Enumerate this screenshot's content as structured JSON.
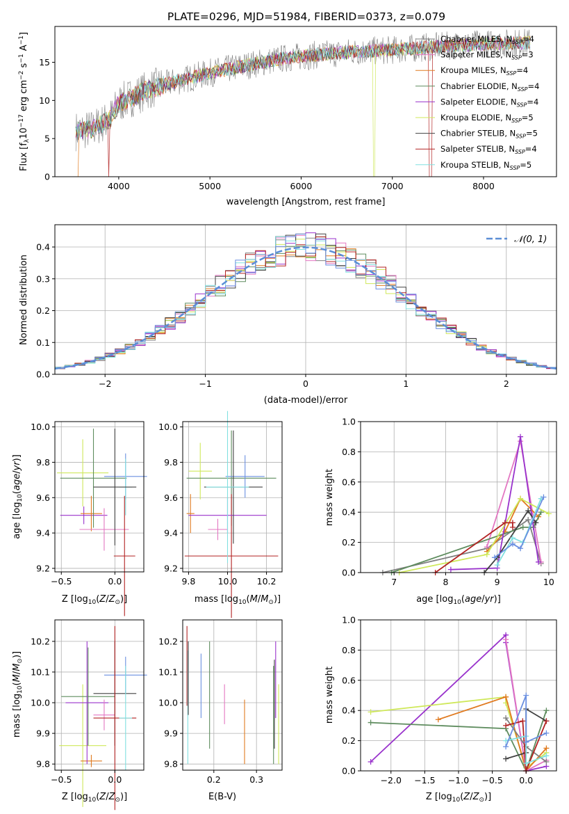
{
  "title": "PLATE=0296, MJD=51984, FIBERID=0373, z=0.079",
  "colors": {
    "Chabrier MILES": "#808080",
    "Salpeter MILES": "#e377c2",
    "Kroupa MILES": "#e07a1f",
    "Chabrier ELODIE": "#5e8c5e",
    "Salpeter ELODIE": "#9932cc",
    "Kroupa ELODIE": "#cfe85a",
    "Chabrier STELIB": "#404040",
    "Salpeter STELIB": "#b22222",
    "Kroupa STELIB": "#80e0e0",
    "STELIB blue": "#6a8fe0",
    "gaussian": "#5b8ed6"
  },
  "chart_data": [
    {
      "id": "spectrum",
      "type": "line",
      "title": "PLATE=0296, MJD=51984, FIBERID=0373, z=0.079",
      "xlabel": "wavelength [Angstrom, rest frame]",
      "ylabel": "Flux [f_λ10^-17 erg cm^-2 s^-1 A^-1]",
      "xlim": [
        3300,
        8800
      ],
      "ylim": [
        0,
        19.7
      ],
      "xticks": [
        "4000",
        "5000",
        "6000",
        "7000",
        "8000"
      ],
      "yticks": [
        "0",
        "5",
        "10",
        "15"
      ],
      "legend_position": "top-right",
      "legend": [
        {
          "pre": "Chabrier MILES, N",
          "n": "4",
          "key": "Chabrier MILES"
        },
        {
          "pre": "Salpeter MILES, N",
          "n": "3",
          "key": "Salpeter MILES"
        },
        {
          "pre": "Kroupa MILES, N",
          "n": "4",
          "key": "Kroupa MILES"
        },
        {
          "pre": "Chabrier ELODIE, N",
          "n": "4",
          "key": "Chabrier ELODIE"
        },
        {
          "pre": "Salpeter ELODIE, N",
          "n": "4",
          "key": "Salpeter ELODIE"
        },
        {
          "pre": "Kroupa ELODIE, N",
          "n": "5",
          "key": "Kroupa ELODIE"
        },
        {
          "pre": "Chabrier STELIB, N",
          "n": "5",
          "key": "Chabrier STELIB"
        },
        {
          "pre": "Salpeter STELIB, N",
          "n": "4",
          "key": "Salpeter STELIB"
        },
        {
          "pre": "Kroupa STELIB, N",
          "n": "5",
          "key": "Kroupa STELIB"
        }
      ],
      "continuum": [
        [
          3530,
          6.0
        ],
        [
          3700,
          6.2
        ],
        [
          3900,
          7.5
        ],
        [
          4000,
          9.6
        ],
        [
          4300,
          11.3
        ],
        [
          4600,
          12.4
        ],
        [
          5000,
          13.6
        ],
        [
          5400,
          14.6
        ],
        [
          5800,
          15.5
        ],
        [
          6200,
          16.0
        ],
        [
          6600,
          16.4
        ],
        [
          7000,
          16.6
        ],
        [
          7400,
          17.0
        ],
        [
          7800,
          17.3
        ],
        [
          8200,
          17.5
        ],
        [
          8500,
          17.6
        ]
      ],
      "dropouts": [
        {
          "key": "Kroupa ELODIE",
          "x": 6800,
          "range": [
            6790,
            6810
          ]
        },
        {
          "key": "Salpeter STELIB",
          "x": 7420,
          "range": [
            7400,
            7440
          ]
        },
        {
          "key": "Kroupa MILES",
          "x": 3540,
          "range": [
            3530,
            3560
          ]
        },
        {
          "key": "Salpeter STELIB",
          "x": 3890,
          "range": [
            3880,
            3900
          ]
        }
      ]
    },
    {
      "id": "residuals",
      "type": "line",
      "xlabel": "(data-model)/error",
      "ylabel": "Normed distribution",
      "xlim": [
        -2.5,
        2.5
      ],
      "ylim": [
        0,
        0.47
      ],
      "xticks": [
        "−2",
        "−1",
        "0",
        "1",
        "2"
      ],
      "yticks": [
        "0.0",
        "0.1",
        "0.2",
        "0.3",
        "0.4"
      ],
      "legend": "𝒩(0, 1)",
      "legend_position": "top-right",
      "bin_width": 0.1
    },
    {
      "id": "age-vs-Z",
      "type": "scatter",
      "xlabel": "Z [log10(Z/Z⊙)]",
      "ylabel": "age  [log10(age/yr)]",
      "xlim": [
        -0.56,
        0.27
      ],
      "ylim": [
        9.18,
        10.03
      ],
      "xticks": [
        "−0.5",
        "0.0"
      ],
      "yticks": [
        "9.2",
        "9.4",
        "9.6",
        "9.8",
        "10.0"
      ],
      "points": [
        {
          "key": "Kroupa ELODIE",
          "x": -0.3,
          "xe": 0.24,
          "y": 9.74,
          "ye": 0.19
        },
        {
          "key": "Salpeter ELODIE",
          "x": -0.29,
          "xe": 0.22,
          "y": 9.5,
          "ye": 0.05
        },
        {
          "key": "Kroupa MILES",
          "x": -0.22,
          "xe": 0.1,
          "y": 9.51,
          "ye": 0.1
        },
        {
          "key": "Chabrier ELODIE",
          "x": -0.2,
          "xe": 0.31,
          "y": 9.71,
          "ye": 0.28
        },
        {
          "key": "Salpeter MILES",
          "x": -0.1,
          "xe": 0.23,
          "y": 9.42,
          "ye": 0.12
        },
        {
          "key": "STELIB blue",
          "x": 0.1,
          "xe": 0.2,
          "y": 9.72,
          "ye": 0.13
        },
        {
          "key": "Kroupa STELIB",
          "x": 0.1,
          "xe": 0.06,
          "y": 9.66,
          "ye": 0.16
        },
        {
          "key": "Chabrier STELIB",
          "x": 0.0,
          "xe": 0.2,
          "y": 9.66,
          "ye": 0.33
        },
        {
          "key": "Salpeter STELIB",
          "x": 0.09,
          "xe": 0.1,
          "y": 9.27,
          "ye": 0.34
        }
      ]
    },
    {
      "id": "age-vs-mass",
      "type": "scatter",
      "xlabel": "mass [log10(M/M⊙)]",
      "xlim": [
        9.77,
        10.28
      ],
      "ylim": [
        9.18,
        10.03
      ],
      "xticks": [
        "9.8",
        "10.0",
        "10.2"
      ],
      "yticks": [
        "9.2",
        "9.4",
        "9.6",
        "9.8",
        "10.0"
      ],
      "points": [
        {
          "key": "Kroupa ELODIE",
          "x": 9.86,
          "xe": 0.06,
          "y": 9.75,
          "ye": 0.16
        },
        {
          "key": "Kroupa MILES",
          "x": 9.81,
          "xe": 0.02,
          "y": 9.51,
          "ye": 0.11
        },
        {
          "key": "Chabrier ELODIE",
          "x": 10.02,
          "xe": 0.23,
          "y": 9.71,
          "ye": 0.27
        },
        {
          "key": "Salpeter STELIB",
          "x": 10.02,
          "xe": 0.24,
          "y": 9.27,
          "ye": 0.35
        },
        {
          "key": "Salpeter ELODIE",
          "x": 10.0,
          "xe": 0.2,
          "y": 9.5,
          "ye": 0.1
        },
        {
          "key": "STELIB blue",
          "x": 10.09,
          "xe": 0.1,
          "y": 9.72,
          "ye": 0.12
        },
        {
          "key": "Chabrier STELIB",
          "x": 10.03,
          "xe": 0.15,
          "y": 9.66,
          "ye": 0.32
        },
        {
          "key": "Salpeter MILES",
          "x": 9.95,
          "xe": 0.05,
          "y": 9.42,
          "ye": 0.06
        },
        {
          "key": "Kroupa STELIB",
          "x": 10.0,
          "xe": 0.11,
          "y": 9.66,
          "ye": 0.43
        }
      ]
    },
    {
      "id": "weight-vs-age",
      "type": "line",
      "xlabel": "age  [log10(age/yr)]",
      "ylabel": "mass weight",
      "xlim": [
        6.35,
        10.15
      ],
      "ylim": [
        0,
        1.0
      ],
      "xticks": [
        "7",
        "8",
        "9",
        "10"
      ],
      "yticks": [
        "0.0",
        "0.2",
        "0.4",
        "0.6",
        "0.8",
        "1.0"
      ],
      "series": [
        {
          "key": "Chabrier MILES",
          "points": [
            [
              6.78,
              0.0
            ],
            [
              8.8,
              0.16
            ],
            [
              9.6,
              0.35
            ],
            [
              9.85,
              0.06
            ]
          ]
        },
        {
          "key": "Salpeter MILES",
          "points": [
            [
              8.8,
              0.17
            ],
            [
              9.45,
              0.87
            ],
            [
              9.85,
              0.07
            ]
          ]
        },
        {
          "key": "Kroupa MILES",
          "points": [
            [
              8.8,
              0.14
            ],
            [
              9.15,
              0.27
            ],
            [
              9.45,
              0.49
            ],
            [
              9.8,
              0.37
            ]
          ]
        },
        {
          "key": "Chabrier ELODIE",
          "points": [
            [
              6.95,
              0.0
            ],
            [
              9.5,
              0.3
            ],
            [
              9.7,
              0.3
            ],
            [
              9.85,
              0.4
            ]
          ]
        },
        {
          "key": "Salpeter ELODIE",
          "points": [
            [
              8.1,
              0.02
            ],
            [
              9.0,
              0.03
            ],
            [
              9.45,
              0.9
            ],
            [
              9.8,
              0.07
            ]
          ]
        },
        {
          "key": "Kroupa ELODIE",
          "points": [
            [
              7.1,
              0.0
            ],
            [
              8.8,
              0.12
            ],
            [
              9.45,
              0.49
            ],
            [
              10.0,
              0.39
            ]
          ]
        },
        {
          "key": "Chabrier STELIB",
          "points": [
            [
              8.75,
              0.0
            ],
            [
              9.0,
              0.1
            ],
            [
              9.6,
              0.41
            ],
            [
              9.75,
              0.33
            ]
          ]
        },
        {
          "key": "Salpeter STELIB",
          "points": [
            [
              7.8,
              0.0
            ],
            [
              9.15,
              0.33
            ],
            [
              9.3,
              0.33
            ],
            [
              9.3,
              0.3
            ]
          ]
        },
        {
          "key": "Kroupa STELIB",
          "points": [
            [
              9.0,
              0.05
            ],
            [
              9.3,
              0.23
            ],
            [
              9.5,
              0.2
            ],
            [
              9.85,
              0.49
            ]
          ]
        },
        {
          "key": "STELIB blue",
          "points": [
            [
              8.95,
              0.1
            ],
            [
              9.3,
              0.19
            ],
            [
              9.45,
              0.16
            ],
            [
              9.9,
              0.5
            ]
          ]
        }
      ]
    },
    {
      "id": "mass-vs-Z",
      "type": "scatter",
      "xlabel": "Z [log10(Z/Z⊙)]",
      "ylabel": "mass [log10(M/M⊙)]",
      "xlim": [
        -0.56,
        0.27
      ],
      "ylim": [
        9.78,
        10.27
      ],
      "xticks": [
        "−0.5",
        "0.0"
      ],
      "yticks": [
        "9.8",
        "9.9",
        "10.0",
        "10.1",
        "10.2"
      ],
      "points": [
        {
          "key": "Kroupa ELODIE",
          "x": -0.3,
          "xe": 0.22,
          "y": 9.86,
          "ye": 0.2
        },
        {
          "key": "Kroupa MILES",
          "x": -0.22,
          "xe": 0.1,
          "y": 9.81,
          "ye": 0.02
        },
        {
          "key": "Chabrier ELODIE",
          "x": -0.25,
          "xe": 0.25,
          "y": 10.02,
          "ye": 0.16
        },
        {
          "key": "Salpeter ELODIE",
          "x": -0.26,
          "xe": 0.2,
          "y": 10.0,
          "ye": 0.2
        },
        {
          "key": "Salpeter MILES",
          "x": -0.1,
          "xe": 0.1,
          "y": 9.96,
          "ye": 0.05
        },
        {
          "key": "STELIB blue",
          "x": 0.1,
          "xe": 0.2,
          "y": 10.09,
          "ye": 0.06
        },
        {
          "key": "Chabrier STELIB",
          "x": 0.0,
          "xe": 0.2,
          "y": 10.03,
          "ye": 0.17
        },
        {
          "key": "Salpeter STELIB",
          "x": 0.0,
          "xe": 0.2,
          "y": 9.95,
          "ye": 0.3
        },
        {
          "key": "Kroupa STELIB",
          "x": 0.1,
          "xe": 0.06,
          "y": 9.95,
          "ye": 0.17
        }
      ]
    },
    {
      "id": "mass-vs-EBV",
      "type": "scatter",
      "xlabel": "E(B-V)",
      "xlim": [
        0.127,
        0.36
      ],
      "ylim": [
        9.78,
        10.27
      ],
      "xticks": [
        "0.2",
        "0.3"
      ],
      "yticks": [
        "9.8",
        "9.9",
        "10.0",
        "10.1",
        "10.2"
      ],
      "segments": [
        {
          "key": "Salpeter STELIB",
          "x": 0.137,
          "y": [
            9.99,
            10.25
          ]
        },
        {
          "key": "Kroupa STELIB",
          "x": 0.139,
          "y": [
            9.8,
            10.17
          ]
        },
        {
          "key": "Chabrier STELIB",
          "x": 0.14,
          "y": [
            9.96,
            10.2
          ]
        },
        {
          "key": "STELIB blue",
          "x": 0.17,
          "y": [
            9.95,
            10.16
          ]
        },
        {
          "key": "Chabrier ELODIE",
          "x": 0.19,
          "y": [
            9.85,
            10.2
          ]
        },
        {
          "key": "Salpeter MILES",
          "x": 0.225,
          "y": [
            9.93,
            10.06
          ]
        },
        {
          "key": "Kroupa MILES",
          "x": 0.272,
          "y": [
            9.8,
            10.01
          ]
        },
        {
          "key": "Chabrier ELODIE",
          "x": 0.34,
          "y": [
            9.8,
            10.12
          ]
        },
        {
          "key": "Chabrier STELIB",
          "x": 0.342,
          "y": [
            9.85,
            10.14
          ]
        },
        {
          "key": "Salpeter ELODIE",
          "x": 0.345,
          "y": [
            9.95,
            10.2
          ]
        },
        {
          "key": "Kroupa ELODIE",
          "x": 0.352,
          "y": [
            9.8,
            10.06
          ]
        }
      ]
    },
    {
      "id": "weight-vs-Z",
      "type": "line",
      "xlabel": "Z [log10(Z/Z⊙)]",
      "ylabel": "mass weight",
      "xlim": [
        -2.45,
        0.45
      ],
      "ylim": [
        0,
        1.0
      ],
      "xticks": [
        "−2.0",
        "−1.5",
        "−1.0",
        "−0.5",
        "0.0"
      ],
      "yticks": [
        "0.0",
        "0.2",
        "0.4",
        "0.6",
        "0.8",
        "1.0"
      ],
      "series": [
        {
          "key": "Salpeter ELODIE",
          "points": [
            [
              -2.3,
              0.06
            ],
            [
              -0.3,
              0.9
            ],
            [
              -0.3,
              0.85
            ],
            [
              0.0,
              0.0
            ],
            [
              0.3,
              0.03
            ]
          ]
        },
        {
          "key": "Kroupa ELODIE",
          "points": [
            [
              -2.3,
              0.39
            ],
            [
              -0.3,
              0.49
            ],
            [
              -0.3,
              0.45
            ],
            [
              0.0,
              0.02
            ],
            [
              0.3,
              0.12
            ]
          ]
        },
        {
          "key": "Chabrier ELODIE",
          "points": [
            [
              -2.3,
              0.32
            ],
            [
              -0.3,
              0.28
            ],
            [
              0.0,
              0.0
            ],
            [
              0.3,
              0.4
            ]
          ]
        },
        {
          "key": "Kroupa MILES",
          "points": [
            [
              -1.3,
              0.34
            ],
            [
              -0.3,
              0.49
            ],
            [
              0.0,
              0.0
            ],
            [
              0.3,
              0.15
            ]
          ]
        },
        {
          "key": "Salpeter MILES",
          "points": [
            [
              -0.3,
              0.87
            ],
            [
              0.0,
              0.0
            ],
            [
              0.3,
              0.07
            ]
          ]
        },
        {
          "key": "Chabrier MILES",
          "points": [
            [
              -0.3,
              0.35
            ],
            [
              0.0,
              0.16
            ],
            [
              0.3,
              0.06
            ]
          ]
        },
        {
          "key": "Chabrier STELIB",
          "points": [
            [
              -0.3,
              0.08
            ],
            [
              0.0,
              0.12
            ],
            [
              0.0,
              0.41
            ],
            [
              0.3,
              0.33
            ]
          ]
        },
        {
          "key": "Salpeter STELIB",
          "points": [
            [
              -0.3,
              0.3
            ],
            [
              -0.05,
              0.33
            ],
            [
              0.0,
              0.0
            ],
            [
              0.3,
              0.33
            ]
          ]
        },
        {
          "key": "Kroupa STELIB",
          "points": [
            [
              -0.3,
              0.2
            ],
            [
              0.0,
              0.23
            ],
            [
              0.0,
              0.05
            ],
            [
              0.3,
              0.1
            ]
          ]
        },
        {
          "key": "STELIB blue",
          "points": [
            [
              -0.3,
              0.16
            ],
            [
              0.0,
              0.5
            ],
            [
              0.0,
              0.19
            ],
            [
              0.3,
              0.25
            ]
          ]
        }
      ]
    }
  ]
}
